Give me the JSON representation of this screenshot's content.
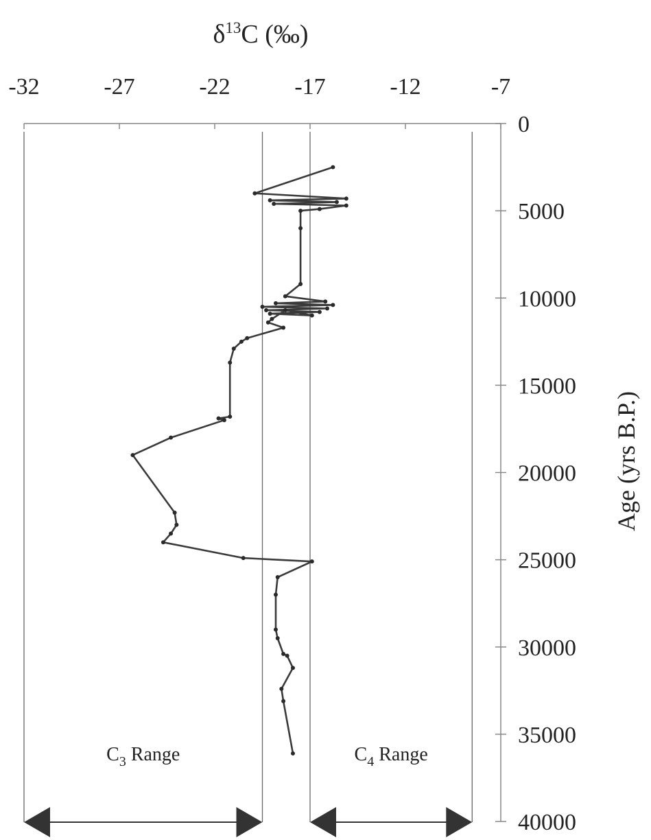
{
  "chart_data": {
    "type": "line",
    "title": "δ13C (‰)",
    "xlabel": "δ13C (‰)",
    "ylabel": "Age (yrs B.P.)",
    "xlim": [
      -32,
      -7
    ],
    "ylim": [
      0,
      40000
    ],
    "x_ticks": [
      "-32",
      "-27",
      "-22",
      "-17",
      "-12",
      "-7"
    ],
    "y_ticks": [
      "0",
      "5000",
      "10000",
      "15000",
      "20000",
      "25000",
      "30000",
      "35000",
      "40000"
    ],
    "x_axis_position": "top",
    "y_axis_position": "right",
    "y_reversed": true,
    "grid": false,
    "series": [
      {
        "x": [
          -15.8,
          -19.9,
          -15.1,
          -19.1,
          -15.6,
          -18.9,
          -15.1,
          -16.5,
          -17.5,
          -17.5,
          -17.5,
          -18.3,
          -16.2,
          -18.8,
          -15.8,
          -19.5,
          -16.1,
          -19.3,
          -16.5,
          -19.1,
          -16.9,
          -18.3,
          -19.0,
          -19.2,
          -18.4,
          -20.3,
          -20.6,
          -21.0,
          -21.2,
          -21.2,
          -21.8,
          -21.5,
          -24.3,
          -26.3,
          -24.1,
          -24.0,
          -24.3,
          -24.7,
          -20.5,
          -16.9,
          -18.7,
          -18.8,
          -18.8,
          -18.7,
          -18.4,
          -18.2,
          -17.9,
          -18.5,
          -18.4,
          -17.9
        ],
        "y": [
          2500,
          4000,
          4300,
          4400,
          4500,
          4600,
          4700,
          4900,
          5000,
          6000,
          9200,
          9900,
          10200,
          10300,
          10400,
          10500,
          10600,
          10700,
          10800,
          10900,
          11000,
          10700,
          11200,
          11400,
          11700,
          12300,
          12500,
          12900,
          13700,
          16800,
          16900,
          17000,
          18000,
          19000,
          22300,
          23000,
          23500,
          24000,
          24900,
          25100,
          26000,
          27000,
          29000,
          29500,
          30400,
          30500,
          31200,
          32400,
          33100,
          36100
        ]
      }
    ],
    "ranges": [
      {
        "label_base": "C",
        "label_sub": "3",
        "label_rest": " Range",
        "from": -32,
        "to": -19.5
      },
      {
        "label_base": "C",
        "label_sub": "4",
        "label_rest": " Range",
        "from": -17,
        "to": -8.5
      }
    ]
  }
}
